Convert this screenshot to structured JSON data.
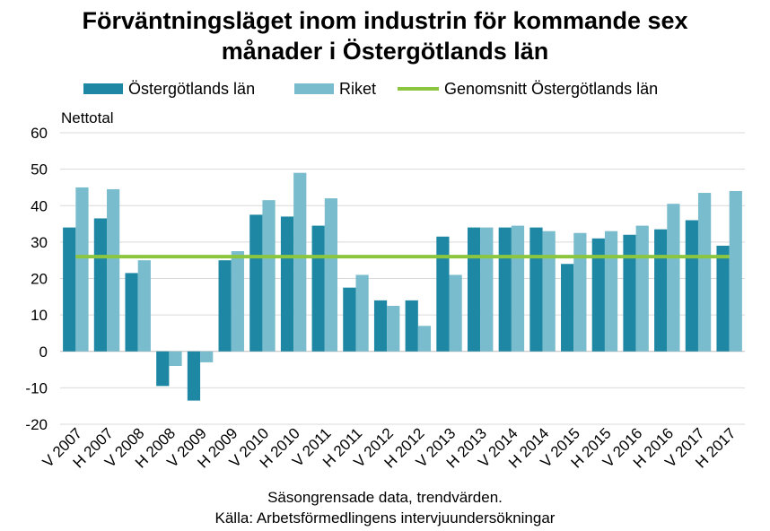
{
  "title_line1": "Förväntningsläget inom industrin för kommande sex",
  "title_line2": "månader i Östergötlands län",
  "colors": {
    "ostergotland": "#1d87a4",
    "riket": "#79bccd",
    "average": "#8cc63f"
  },
  "footer_line1": "Säsongrensade data, trendvärden.",
  "footer_line2": "Källa: Arbetsförmedlingens  intervjuundersökningar",
  "chart_data": {
    "type": "bar",
    "ylabel": "Nettotal",
    "ylim": [
      -20,
      60
    ],
    "yticks": [
      -20,
      -10,
      0,
      10,
      20,
      30,
      40,
      50,
      60
    ],
    "grid": true,
    "legend_position": "top",
    "categories": [
      "V 2007",
      "H 2007",
      "V 2008",
      "H 2008",
      "V 2009",
      "H 2009",
      "V 2010",
      "H 2010",
      "V 2011",
      "H 2011",
      "V 2012",
      "H 2012",
      "V 2013",
      "H 2013",
      "V 2014",
      "H 2014",
      "V 2015",
      "H 2015",
      "V 2016",
      "H 2016",
      "V 2017",
      "H 2017"
    ],
    "series": [
      {
        "name": "Östergötlands län",
        "type": "bar",
        "values": [
          34,
          36.5,
          21.5,
          -9.5,
          -13.5,
          25,
          37.5,
          37,
          34.5,
          17.5,
          14,
          14,
          31.5,
          34,
          34,
          34,
          24,
          31,
          32,
          33.5,
          36,
          29
        ]
      },
      {
        "name": "Riket",
        "type": "bar",
        "values": [
          45,
          44.5,
          25,
          -4,
          -3,
          27.5,
          41.5,
          49,
          42,
          21,
          12.5,
          7,
          21,
          34,
          34.5,
          33,
          32.5,
          33,
          34.5,
          40.5,
          43.5,
          44
        ]
      },
      {
        "name": "Genomsnitt Östergötlands län",
        "type": "line",
        "values": [
          26,
          26,
          26,
          26,
          26,
          26,
          26,
          26,
          26,
          26,
          26,
          26,
          26,
          26,
          26,
          26,
          26,
          26,
          26,
          26,
          26,
          26
        ]
      }
    ]
  }
}
